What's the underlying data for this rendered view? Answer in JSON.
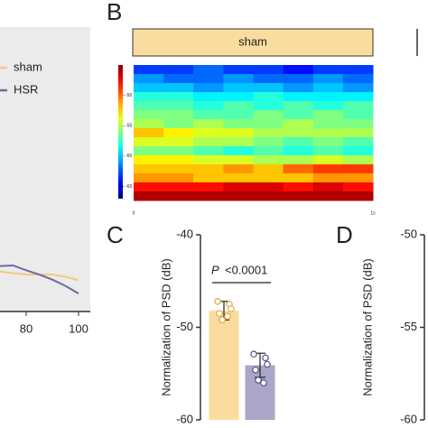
{
  "chart_data": [
    {
      "type": "line",
      "xlim": [
        70,
        100
      ],
      "xticks": [
        80,
        100
      ],
      "ylim": [
        0,
        10
      ],
      "x": [
        70,
        75,
        80,
        85,
        90,
        95,
        100
      ],
      "series": [
        {
          "name": "sham",
          "color": "#f7c97a",
          "values": [
            1.4,
            1.35,
            1.3,
            1.3,
            1.3,
            1.22,
            1.1
          ]
        },
        {
          "name": "HSR",
          "color": "#6e6aa0",
          "values": [
            1.6,
            1.62,
            1.45,
            1.3,
            1.12,
            0.9,
            0.63
          ]
        }
      ]
    },
    {
      "type": "heatmap",
      "label": "B",
      "box_label": "sham",
      "box_color": "#fbdc9f",
      "xlim": [
        0,
        1
      ],
      "xticks": [
        {
          "value": 0,
          "label": "0"
        },
        {
          "value": 1,
          "label": "1s"
        }
      ],
      "zlim": [
        -67,
        -45
      ],
      "zticks": [
        -50,
        -55,
        -60,
        -65
      ],
      "z": [
        [
          -63,
          -63,
          -62,
          -63,
          -63,
          -64,
          -63,
          -63
        ],
        [
          -61,
          -62,
          -62,
          -61,
          -62,
          -62,
          -61,
          -62
        ],
        [
          -60,
          -60,
          -61,
          -60,
          -60,
          -61,
          -60,
          -61
        ],
        [
          -58,
          -58,
          -59,
          -59,
          -58,
          -59,
          -59,
          -59
        ],
        [
          -57,
          -57,
          -58,
          -57,
          -58,
          -57,
          -58,
          -57
        ],
        [
          -56,
          -56,
          -57,
          -57,
          -56,
          -57,
          -56,
          -57
        ],
        [
          -55,
          -56,
          -55,
          -56,
          -56,
          -55,
          -56,
          -56
        ],
        [
          -52,
          -53,
          -54,
          -54,
          -55,
          -55,
          -55,
          -55
        ],
        [
          -54,
          -54,
          -55,
          -55,
          -56,
          -57,
          -56,
          -57
        ],
        [
          -56,
          -56,
          -57,
          -58,
          -57,
          -58,
          -57,
          -58
        ],
        [
          -53,
          -53,
          -54,
          -54,
          -55,
          -55,
          -54,
          -55
        ],
        [
          -52,
          -52,
          -52,
          -51,
          -52,
          -50,
          -49,
          -49
        ],
        [
          -51,
          -51,
          -52,
          -52,
          -52,
          -52,
          -51,
          -51
        ],
        [
          -48,
          -48,
          -48,
          -47,
          -47,
          -48,
          -47,
          -48
        ],
        [
          -46,
          -46,
          -46,
          -46,
          -46,
          -46,
          -46,
          -46
        ]
      ]
    },
    {
      "type": "bar",
      "label": "C",
      "ylabel": "Normalization of PSD (dB)",
      "ylim": [
        -60,
        -40
      ],
      "yticks": [
        -40,
        -50,
        -60
      ],
      "values": [
        -48.2,
        -54.1
      ],
      "errors": [
        1.0,
        1.3
      ],
      "colors": [
        "#fbdc9f",
        "#a9a6c9"
      ],
      "point_colors": [
        "#e0a84a",
        "#55528a"
      ],
      "points": [
        [
          -47.2,
          -47.5,
          -48.5,
          -48.0,
          -49.2,
          -48.8
        ],
        [
          -52.9,
          -53.3,
          -54.6,
          -54.0,
          -55.7,
          -56.0
        ]
      ],
      "p_symbol": "P",
      "p_text": "<0.0001"
    },
    {
      "type": "bar",
      "label": "D",
      "ylabel": "Normalization of PSD (dB)",
      "ylim": [
        -60,
        -50
      ],
      "yticks": [
        -50,
        -55,
        -60
      ]
    }
  ]
}
